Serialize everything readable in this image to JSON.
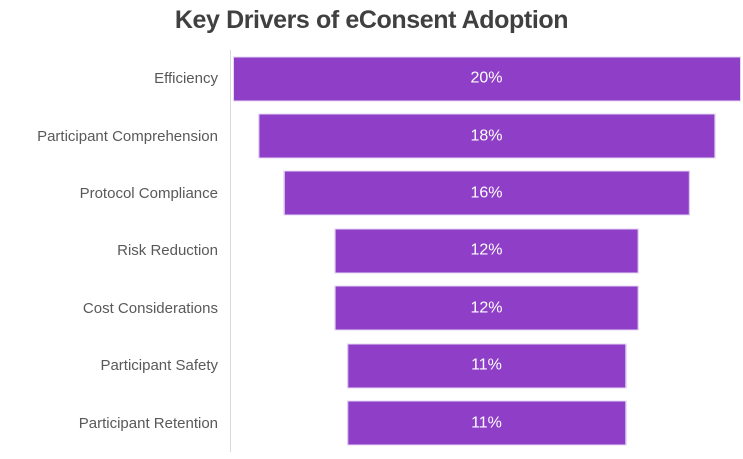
{
  "chart": {
    "colors": {
      "background": "#ffffff",
      "bar_fill": "#8f3ec8",
      "bar_border": "#e6d7f3",
      "axis_line": "#d9d9d9",
      "title_text": "#404040",
      "category_text": "#595959",
      "data_label_text": "#ffffff"
    }
  },
  "chart_data": {
    "type": "bar",
    "subtype": "funnel-centered-horizontal",
    "title": "Key Drivers of eConsent Adoption",
    "categories": [
      "Efficiency",
      "Participant Comprehension",
      "Protocol Compliance",
      "Risk Reduction",
      "Cost Considerations",
      "Participant Safety",
      "Participant Retention"
    ],
    "values": [
      20,
      18,
      16,
      12,
      12,
      11,
      11
    ],
    "value_labels": [
      "20%",
      "18%",
      "16%",
      "12%",
      "12%",
      "11%",
      "11%"
    ],
    "xlabel": "",
    "ylabel": "",
    "xlim": [
      0,
      20
    ],
    "grid": false,
    "legend": false,
    "data_label_position": "center-inside",
    "axis": "vertical-category-line-only"
  }
}
